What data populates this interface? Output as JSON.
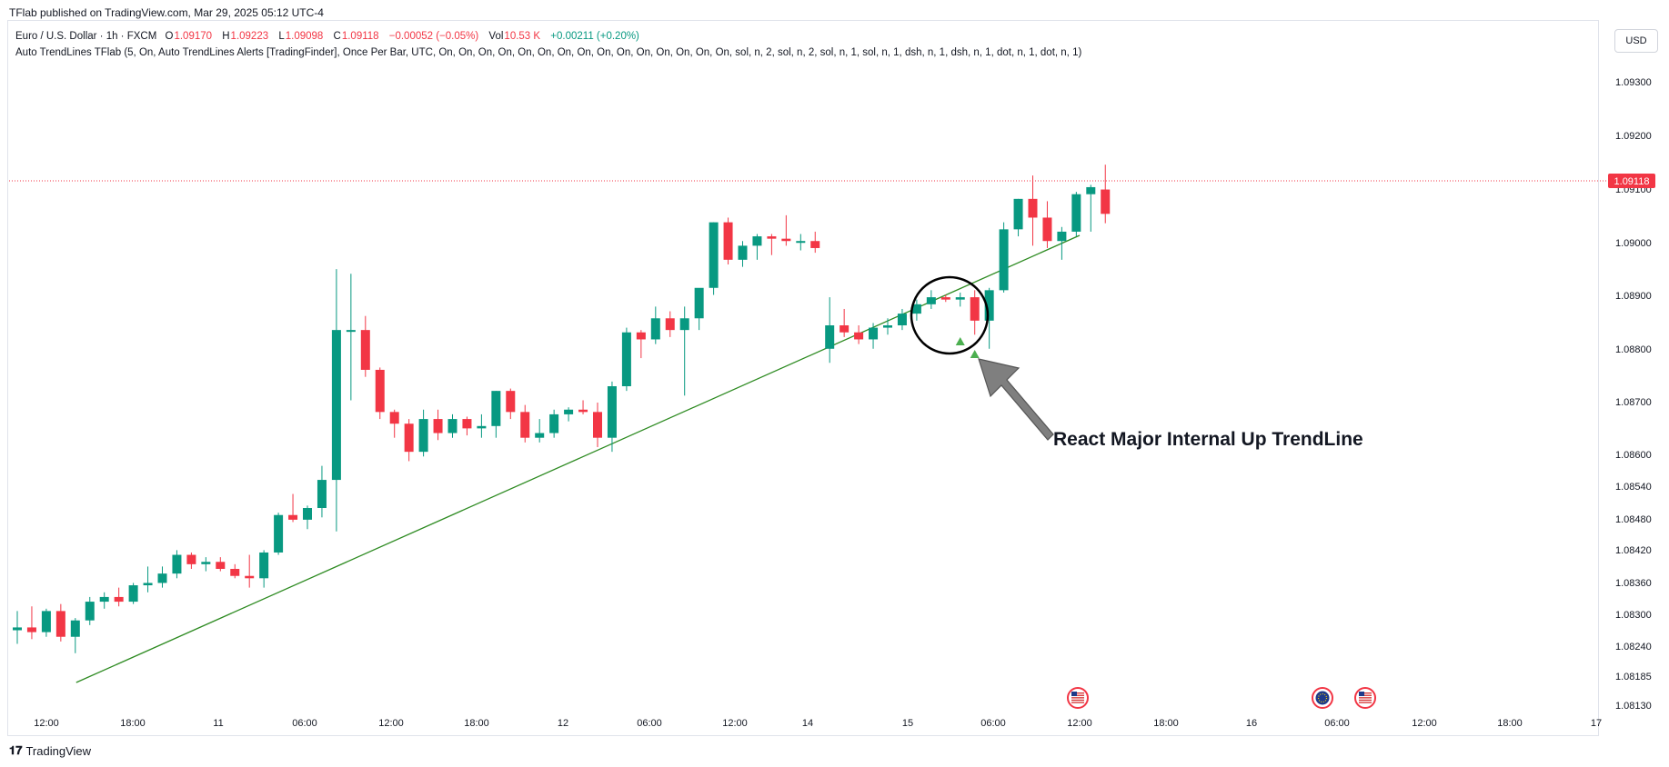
{
  "header": {
    "published": "TFlab published on TradingView.com, Mar 29, 2025 05:12 UTC-4"
  },
  "legend": {
    "symbol": "Euro / U.S. Dollar · 1h · FXCM",
    "o_label": "O",
    "o_value": "1.09170",
    "h_label": "H",
    "h_value": "1.09223",
    "l_label": "L",
    "l_value": "1.09098",
    "c_label": "C",
    "c_value": "1.09118",
    "change": "−0.00052 (−0.05%)",
    "vol_label": "Vol",
    "vol_value": "10.53 K",
    "vol_change": "+0.00211 (+0.20%)",
    "indicator": "Auto TrendLines TFlab (5, On, Auto TrendLines Alerts [TradingFinder], Once Per Bar, UTC, On, On, On, On, On, On, On, On, On, On, On, On, On, On, On, sol, n, 2, sol, n, 2, sol, n, 1, sol, n, 1, dsh, n, 1, dsh, n, 1, dot, n, 1, dot, n, 1)"
  },
  "currency_button": "USD",
  "footer": {
    "logo_mark": "𝟏𝟕",
    "brand": "TradingView"
  },
  "annotation": {
    "text": "React Major Internal Up TrendLine"
  },
  "colors": {
    "up": "#089981",
    "down": "#f23645",
    "trendline": "#2e8b22",
    "price_line": "#f23645"
  },
  "chart_data": {
    "type": "candlestick",
    "symbol": "EURUSD",
    "timeframe": "1h",
    "ylim": [
      1.081,
      1.094
    ],
    "y_ticks": [
      "1.09300",
      "1.09200",
      "1.09100",
      "1.09000",
      "1.08900",
      "1.08800",
      "1.08700",
      "1.08600",
      "1.08540",
      "1.08480",
      "1.08420",
      "1.08360",
      "1.08300",
      "1.08240",
      "1.08185",
      "1.08130"
    ],
    "x_ticks": [
      "12:00",
      "18:00",
      "11",
      "06:00",
      "12:00",
      "18:00",
      "12",
      "06:00",
      "12:00",
      "14",
      "15",
      "06:00",
      "12:00",
      "18:00",
      "16",
      "06:00",
      "12:00",
      "18:00",
      "17"
    ],
    "last_price": "1.09118",
    "candles": [
      {
        "o": 1.08229,
        "h": 1.0827,
        "l": 1.082,
        "c": 1.08235
      },
      {
        "o": 1.08235,
        "h": 1.0828,
        "l": 1.0821,
        "c": 1.08225
      },
      {
        "o": 1.08225,
        "h": 1.08275,
        "l": 1.08215,
        "c": 1.0827
      },
      {
        "o": 1.0827,
        "h": 1.08285,
        "l": 1.08205,
        "c": 1.08215
      },
      {
        "o": 1.08215,
        "h": 1.08255,
        "l": 1.0818,
        "c": 1.0825
      },
      {
        "o": 1.0825,
        "h": 1.083,
        "l": 1.0824,
        "c": 1.0829
      },
      {
        "o": 1.0829,
        "h": 1.0831,
        "l": 1.08275,
        "c": 1.083
      },
      {
        "o": 1.083,
        "h": 1.0832,
        "l": 1.0828,
        "c": 1.0829
      },
      {
        "o": 1.0829,
        "h": 1.0833,
        "l": 1.08285,
        "c": 1.08325
      },
      {
        "o": 1.08325,
        "h": 1.08365,
        "l": 1.0831,
        "c": 1.0833
      },
      {
        "o": 1.0833,
        "h": 1.08365,
        "l": 1.0832,
        "c": 1.0835
      },
      {
        "o": 1.0835,
        "h": 1.084,
        "l": 1.0834,
        "c": 1.0839
      },
      {
        "o": 1.0839,
        "h": 1.08395,
        "l": 1.0836,
        "c": 1.0837
      },
      {
        "o": 1.0837,
        "h": 1.08385,
        "l": 1.08355,
        "c": 1.08375
      },
      {
        "o": 1.08375,
        "h": 1.08385,
        "l": 1.08355,
        "c": 1.0836
      },
      {
        "o": 1.0836,
        "h": 1.0837,
        "l": 1.0834,
        "c": 1.08345
      },
      {
        "o": 1.08345,
        "h": 1.0839,
        "l": 1.0832,
        "c": 1.0834
      },
      {
        "o": 1.0834,
        "h": 1.084,
        "l": 1.0832,
        "c": 1.08395
      },
      {
        "o": 1.08395,
        "h": 1.0848,
        "l": 1.0839,
        "c": 1.08475
      },
      {
        "o": 1.08475,
        "h": 1.0852,
        "l": 1.0846,
        "c": 1.08465
      },
      {
        "o": 1.08465,
        "h": 1.08495,
        "l": 1.08445,
        "c": 1.0849
      },
      {
        "o": 1.0849,
        "h": 1.0858,
        "l": 1.0847,
        "c": 1.0855
      },
      {
        "o": 1.0855,
        "h": 1.09,
        "l": 1.0844,
        "c": 1.0887
      },
      {
        "o": 1.0887,
        "h": 1.0899,
        "l": 1.0872,
        "c": 1.0887
      },
      {
        "o": 1.0887,
        "h": 1.089,
        "l": 1.0877,
        "c": 1.08785
      },
      {
        "o": 1.08785,
        "h": 1.0879,
        "l": 1.0868,
        "c": 1.08695
      },
      {
        "o": 1.08695,
        "h": 1.087,
        "l": 1.0864,
        "c": 1.0867
      },
      {
        "o": 1.0867,
        "h": 1.0868,
        "l": 1.0859,
        "c": 1.0861
      },
      {
        "o": 1.0861,
        "h": 1.087,
        "l": 1.086,
        "c": 1.0868
      },
      {
        "o": 1.0868,
        "h": 1.087,
        "l": 1.08635,
        "c": 1.0865
      },
      {
        "o": 1.0865,
        "h": 1.0869,
        "l": 1.0864,
        "c": 1.0868
      },
      {
        "o": 1.0868,
        "h": 1.08685,
        "l": 1.08645,
        "c": 1.0866
      },
      {
        "o": 1.0866,
        "h": 1.0869,
        "l": 1.0864,
        "c": 1.08665
      },
      {
        "o": 1.08665,
        "h": 1.0874,
        "l": 1.0864,
        "c": 1.0874
      },
      {
        "o": 1.0874,
        "h": 1.08745,
        "l": 1.0868,
        "c": 1.08695
      },
      {
        "o": 1.08695,
        "h": 1.0871,
        "l": 1.0863,
        "c": 1.0864
      },
      {
        "o": 1.0864,
        "h": 1.0868,
        "l": 1.0863,
        "c": 1.0865
      },
      {
        "o": 1.0865,
        "h": 1.087,
        "l": 1.0864,
        "c": 1.0869
      },
      {
        "o": 1.0869,
        "h": 1.08705,
        "l": 1.08675,
        "c": 1.087
      },
      {
        "o": 1.087,
        "h": 1.0872,
        "l": 1.0869,
        "c": 1.08695
      },
      {
        "o": 1.08695,
        "h": 1.08715,
        "l": 1.0862,
        "c": 1.0864
      },
      {
        "o": 1.0864,
        "h": 1.0876,
        "l": 1.0861,
        "c": 1.0875
      },
      {
        "o": 1.0875,
        "h": 1.08875,
        "l": 1.0874,
        "c": 1.08865
      },
      {
        "o": 1.08865,
        "h": 1.0887,
        "l": 1.0881,
        "c": 1.0885
      },
      {
        "o": 1.0885,
        "h": 1.0892,
        "l": 1.0884,
        "c": 1.08895
      },
      {
        "o": 1.08895,
        "h": 1.0891,
        "l": 1.08855,
        "c": 1.0887
      },
      {
        "o": 1.0887,
        "h": 1.0892,
        "l": 1.0873,
        "c": 1.08895
      },
      {
        "o": 1.08895,
        "h": 1.0895,
        "l": 1.0887,
        "c": 1.0896
      },
      {
        "o": 1.0896,
        "h": 1.091,
        "l": 1.08945,
        "c": 1.091
      },
      {
        "o": 1.091,
        "h": 1.0911,
        "l": 1.0901,
        "c": 1.0902
      },
      {
        "o": 1.0902,
        "h": 1.0906,
        "l": 1.09005,
        "c": 1.0905
      },
      {
        "o": 1.0905,
        "h": 1.09075,
        "l": 1.0902,
        "c": 1.0907
      },
      {
        "o": 1.0907,
        "h": 1.09075,
        "l": 1.0903,
        "c": 1.09065
      },
      {
        "o": 1.09065,
        "h": 1.09115,
        "l": 1.0905,
        "c": 1.0906
      },
      {
        "o": 1.0906,
        "h": 1.09075,
        "l": 1.0904,
        "c": 1.0906
      },
      {
        "o": 1.0906,
        "h": 1.0908,
        "l": 1.09035,
        "c": 1.09045
      },
      {
        "o": 1.0883,
        "h": 1.0894,
        "l": 1.088,
        "c": 1.0888
      },
      {
        "o": 1.0888,
        "h": 1.08915,
        "l": 1.08855,
        "c": 1.08865
      },
      {
        "o": 1.08865,
        "h": 1.0888,
        "l": 1.0884,
        "c": 1.0885
      },
      {
        "o": 1.0885,
        "h": 1.08885,
        "l": 1.0883,
        "c": 1.08875
      },
      {
        "o": 1.08875,
        "h": 1.08895,
        "l": 1.0886,
        "c": 1.0888
      },
      {
        "o": 1.0888,
        "h": 1.08915,
        "l": 1.0887,
        "c": 1.08905
      },
      {
        "o": 1.08905,
        "h": 1.08935,
        "l": 1.0889,
        "c": 1.08925
      },
      {
        "o": 1.08925,
        "h": 1.08955,
        "l": 1.08915,
        "c": 1.0894
      },
      {
        "o": 1.0894,
        "h": 1.08945,
        "l": 1.0893,
        "c": 1.08935
      },
      {
        "o": 1.08935,
        "h": 1.0895,
        "l": 1.0892,
        "c": 1.0894
      },
      {
        "o": 1.0894,
        "h": 1.08955,
        "l": 1.0886,
        "c": 1.0889
      },
      {
        "o": 1.0889,
        "h": 1.0896,
        "l": 1.0883,
        "c": 1.08955
      },
      {
        "o": 1.08955,
        "h": 1.091,
        "l": 1.0895,
        "c": 1.09085
      },
      {
        "o": 1.09085,
        "h": 1.0915,
        "l": 1.0907,
        "c": 1.0915
      },
      {
        "o": 1.0915,
        "h": 1.092,
        "l": 1.0905,
        "c": 1.0911
      },
      {
        "o": 1.0911,
        "h": 1.09145,
        "l": 1.09045,
        "c": 1.0906
      },
      {
        "o": 1.0906,
        "h": 1.0909,
        "l": 1.0902,
        "c": 1.0908
      },
      {
        "o": 1.0908,
        "h": 1.09165,
        "l": 1.0907,
        "c": 1.0916
      },
      {
        "o": 1.0916,
        "h": 1.0918,
        "l": 1.0908,
        "c": 1.09175
      },
      {
        "o": 1.0917,
        "h": 1.09223,
        "l": 1.09098,
        "c": 1.09118
      }
    ],
    "trendline": {
      "from": {
        "candle": 4,
        "price": 1.0818
      },
      "to": {
        "candle": 75,
        "price": 1.09015
      }
    },
    "signal_markers": [
      {
        "candle": 65,
        "price": 1.08845
      },
      {
        "candle": 66,
        "price": 1.08818
      }
    ],
    "event_icons": [
      "US flag",
      "EU flag",
      "US flag"
    ]
  }
}
